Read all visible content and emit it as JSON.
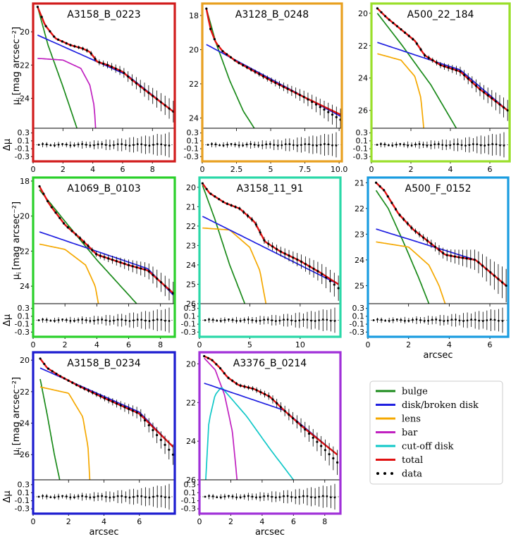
{
  "labels": {
    "mu_label": "μ",
    "mu_sub": "i",
    "mu_units": "[mag arcsec⁻²]",
    "delta_mu": "Δμ",
    "xlabel": "arcsec"
  },
  "legend": [
    {
      "label": "bulge",
      "color": "#1a8a1a",
      "style": "line"
    },
    {
      "label": "disk/broken disk",
      "color": "#1f1fe0",
      "style": "line"
    },
    {
      "label": "lens",
      "color": "#f5a800",
      "style": "line"
    },
    {
      "label": "bar",
      "color": "#c020c0",
      "style": "line"
    },
    {
      "label": "cut-off disk",
      "color": "#10c8c8",
      "style": "line"
    },
    {
      "label": "total",
      "color": "#e01010",
      "style": "line"
    },
    {
      "label": "data",
      "color": "#000000",
      "style": "dots"
    }
  ],
  "chart_data": [
    {
      "type": "line",
      "title": "A3158_B_0223",
      "frame_color": "#d11c1c",
      "xlim": [
        0,
        9.5
      ],
      "ylim": [
        25.8,
        18.3
      ],
      "xticks": [
        0,
        2,
        4,
        6,
        8
      ],
      "yticks": [
        20,
        22,
        24
      ],
      "residual_yticks": [
        "0.3",
        "0.1",
        "-0.1",
        "-0.3"
      ],
      "show_ylabel": true,
      "show_xlabel": false,
      "components": [
        {
          "name": "bulge",
          "x": [
            0.3,
            1.0,
            2.0,
            3.2
          ],
          "y": [
            18.5,
            20.8,
            23.3,
            26.5
          ]
        },
        {
          "name": "disk",
          "x": [
            0.3,
            4.3,
            6.3,
            9.4
          ],
          "y": [
            20.2,
            21.8,
            22.6,
            24.8
          ]
        },
        {
          "name": "bar",
          "x": [
            0.3,
            2.0,
            3.2,
            3.8,
            4.1,
            4.2
          ],
          "y": [
            21.6,
            21.7,
            22.2,
            23.2,
            24.5,
            26.0
          ]
        },
        {
          "name": "total",
          "x": [
            0.3,
            0.8,
            1.5,
            2.5,
            3.3,
            3.8,
            4.3,
            5.0,
            6.0,
            6.5,
            7.5,
            9.4
          ],
          "y": [
            18.5,
            19.6,
            20.4,
            20.8,
            21.0,
            21.2,
            21.8,
            22.0,
            22.4,
            22.8,
            23.5,
            24.8
          ]
        },
        {
          "name": "data",
          "x": [
            0.3,
            0.8,
            1.5,
            2.5,
            3.3,
            3.8,
            4.3,
            5.0,
            6.0,
            6.5,
            7.5,
            9.4
          ],
          "y": [
            18.5,
            19.6,
            20.4,
            20.8,
            21.0,
            21.2,
            21.8,
            22.0,
            22.4,
            22.8,
            23.5,
            24.8
          ]
        }
      ]
    },
    {
      "type": "line",
      "title": "A3128_B_0248",
      "frame_color": "#e8a020",
      "xlim": [
        0,
        10.2
      ],
      "ylim": [
        24.6,
        17.3
      ],
      "xticks": [
        0,
        2.5,
        5.0,
        7.5,
        10.0
      ],
      "yticks": [
        18,
        20,
        22,
        24
      ],
      "residual_yticks": [
        "0.3",
        "0.1",
        "-0.1",
        "-0.3"
      ],
      "show_ylabel": false,
      "show_xlabel": false,
      "components": [
        {
          "name": "bulge",
          "x": [
            0.3,
            1.0,
            2.0,
            3.0,
            3.8
          ],
          "y": [
            17.6,
            19.6,
            21.8,
            23.6,
            24.6
          ]
        },
        {
          "name": "disk",
          "x": [
            0.3,
            10.1
          ],
          "y": [
            19.7,
            23.9
          ]
        },
        {
          "name": "total",
          "x": [
            0.3,
            0.6,
            1.0,
            1.5,
            2.5,
            5.0,
            7.5,
            10.1
          ],
          "y": [
            17.6,
            18.8,
            19.6,
            20.1,
            20.7,
            21.8,
            22.8,
            23.8
          ]
        },
        {
          "name": "data",
          "x": [
            0.3,
            0.6,
            1.0,
            1.5,
            2.5,
            5.0,
            7.5,
            10.1
          ],
          "y": [
            17.6,
            18.8,
            19.6,
            20.1,
            20.7,
            21.8,
            22.8,
            24.1
          ]
        }
      ]
    },
    {
      "type": "line",
      "title": "A500_22_184",
      "frame_color": "#9adf2a",
      "xlim": [
        0,
        7.0
      ],
      "ylim": [
        27.1,
        19.4
      ],
      "xticks": [
        0,
        2,
        4,
        6
      ],
      "yticks": [
        20,
        22,
        24,
        26
      ],
      "residual_yticks": [
        "0.3",
        "0.1",
        "-0.1",
        "-0.3"
      ],
      "show_ylabel": false,
      "show_xlabel": false,
      "components": [
        {
          "name": "bulge",
          "x": [
            0.3,
            1.5,
            3.0,
            4.3
          ],
          "y": [
            20.0,
            21.9,
            24.4,
            27.1
          ]
        },
        {
          "name": "lens",
          "x": [
            0.3,
            1.5,
            2.2,
            2.5,
            2.65
          ],
          "y": [
            22.5,
            22.9,
            23.9,
            25.2,
            27.1
          ]
        },
        {
          "name": "disk",
          "x": [
            0.3,
            4.5,
            6.9
          ],
          "y": [
            21.8,
            23.5,
            26.0
          ]
        },
        {
          "name": "total",
          "x": [
            0.3,
            0.8,
            1.5,
            2.2,
            2.7,
            3.5,
            4.5,
            5.5,
            6.9
          ],
          "y": [
            19.7,
            20.3,
            21.0,
            21.7,
            22.6,
            23.2,
            23.6,
            24.7,
            26.0
          ]
        },
        {
          "name": "data",
          "x": [
            0.3,
            0.8,
            1.5,
            2.2,
            2.7,
            3.5,
            4.5,
            5.5,
            6.9
          ],
          "y": [
            19.7,
            20.3,
            21.0,
            21.7,
            22.6,
            23.2,
            23.6,
            24.7,
            26.0
          ]
        }
      ]
    },
    {
      "type": "line",
      "title": "A1069_B_0103",
      "frame_color": "#2ad02a",
      "xlim": [
        0,
        8.9
      ],
      "ylim": [
        25.0,
        17.8
      ],
      "xticks": [
        0,
        2,
        4,
        6,
        8
      ],
      "yticks": [
        18,
        20,
        22,
        24
      ],
      "residual_yticks": [
        "0.3",
        "0.1",
        "-0.1",
        "-0.3"
      ],
      "show_ylabel": true,
      "show_xlabel": false,
      "components": [
        {
          "name": "bulge",
          "x": [
            0.4,
            2.0,
            4.0,
            6.5
          ],
          "y": [
            18.5,
            20.3,
            22.5,
            25.0
          ]
        },
        {
          "name": "lens",
          "x": [
            0.4,
            2.0,
            3.3,
            3.9,
            4.1
          ],
          "y": [
            21.6,
            21.9,
            22.8,
            24.0,
            25.0
          ]
        },
        {
          "name": "disk",
          "x": [
            0.4,
            7.2,
            8.8
          ],
          "y": [
            20.9,
            23.0,
            24.5
          ]
        },
        {
          "name": "total",
          "x": [
            0.4,
            1.0,
            2.0,
            3.0,
            4.0,
            5.0,
            6.0,
            7.2,
            8.8
          ],
          "y": [
            18.3,
            19.3,
            20.5,
            21.3,
            22.2,
            22.5,
            22.8,
            23.1,
            24.4
          ]
        },
        {
          "name": "data",
          "x": [
            0.4,
            1.0,
            2.0,
            3.0,
            4.0,
            5.0,
            6.0,
            7.2,
            8.8
          ],
          "y": [
            18.3,
            19.3,
            20.5,
            21.3,
            22.2,
            22.5,
            22.8,
            23.1,
            24.4
          ]
        }
      ]
    },
    {
      "type": "line",
      "title": "A3158_11_91",
      "frame_color": "#2ad8a8",
      "xlim": [
        0,
        14.0
      ],
      "ylim": [
        26.0,
        19.5
      ],
      "xticks": [
        0,
        5,
        10
      ],
      "yticks": [
        20,
        21,
        22,
        23,
        24,
        25,
        26
      ],
      "residual_yticks": [
        "0.3",
        "0.1",
        "-0.1",
        "-0.3"
      ],
      "show_ylabel": false,
      "show_xlabel": false,
      "components": [
        {
          "name": "bulge",
          "x": [
            0.3,
            1.5,
            3.0,
            4.5
          ],
          "y": [
            19.9,
            21.6,
            24.0,
            26.0
          ]
        },
        {
          "name": "lens",
          "x": [
            0.3,
            3.0,
            5.0,
            6.0,
            6.6
          ],
          "y": [
            22.1,
            22.2,
            23.1,
            24.3,
            26.0
          ]
        },
        {
          "name": "disk",
          "x": [
            0.3,
            13.8
          ],
          "y": [
            21.5,
            25.0
          ]
        },
        {
          "name": "total",
          "x": [
            0.3,
            1.0,
            2.5,
            4.0,
            5.5,
            6.5,
            8.0,
            10.0,
            12.0,
            13.8
          ],
          "y": [
            19.8,
            20.3,
            20.8,
            21.1,
            21.8,
            22.8,
            23.3,
            23.8,
            24.4,
            25.0
          ]
        },
        {
          "name": "data",
          "x": [
            0.3,
            1.0,
            2.5,
            4.0,
            5.5,
            6.5,
            8.0,
            10.0,
            12.0,
            13.8
          ],
          "y": [
            19.8,
            20.3,
            20.8,
            21.1,
            21.8,
            22.8,
            23.3,
            23.8,
            24.4,
            25.2
          ]
        }
      ]
    },
    {
      "type": "line",
      "title": "A500_F_0152",
      "frame_color": "#1a9ce0",
      "xlim": [
        0,
        6.9
      ],
      "ylim": [
        25.7,
        20.8
      ],
      "xticks": [
        0,
        2,
        4,
        6
      ],
      "yticks": [
        21,
        22,
        23,
        24,
        25
      ],
      "residual_yticks": [
        "0.3",
        "0.1",
        "-0.1",
        "-0.3"
      ],
      "show_ylabel": false,
      "show_xlabel": true,
      "components": [
        {
          "name": "bulge",
          "x": [
            0.4,
            1.0,
            1.8,
            2.5,
            3.0
          ],
          "y": [
            21.3,
            22.0,
            23.4,
            24.7,
            25.7
          ]
        },
        {
          "name": "lens",
          "x": [
            0.4,
            2.0,
            3.0,
            3.5,
            3.8
          ],
          "y": [
            23.3,
            23.5,
            24.2,
            25.0,
            25.7
          ]
        },
        {
          "name": "disk",
          "x": [
            0.4,
            5.3,
            6.8
          ],
          "y": [
            22.8,
            24.0,
            25.0
          ]
        },
        {
          "name": "total",
          "x": [
            0.4,
            0.8,
            1.5,
            2.2,
            3.0,
            3.8,
            4.5,
            5.3,
            6.8
          ],
          "y": [
            21.0,
            21.3,
            22.2,
            22.8,
            23.3,
            23.8,
            23.9,
            24.0,
            25.0
          ]
        },
        {
          "name": "data",
          "x": [
            0.4,
            0.8,
            1.5,
            2.2,
            3.0,
            3.8,
            4.5,
            5.3,
            6.8
          ],
          "y": [
            21.0,
            21.3,
            22.2,
            22.8,
            23.3,
            23.8,
            23.9,
            24.0,
            25.0
          ]
        }
      ]
    },
    {
      "type": "line",
      "title": "A3158_B_0234",
      "frame_color": "#1c1cd0",
      "xlim": [
        0,
        8.0
      ],
      "ylim": [
        27.6,
        19.5
      ],
      "xticks": [
        0,
        2,
        4,
        6
      ],
      "yticks": [
        20,
        22,
        24,
        26
      ],
      "residual_yticks": [
        "0.3",
        "0.1",
        "-0.1",
        "-0.3"
      ],
      "show_ylabel": true,
      "show_xlabel": true,
      "components": [
        {
          "name": "bulge",
          "x": [
            0.4,
            0.8,
            1.2,
            1.5
          ],
          "y": [
            21.2,
            23.5,
            26.0,
            27.6
          ]
        },
        {
          "name": "lens",
          "x": [
            0.4,
            2.0,
            2.8,
            3.1,
            3.2
          ],
          "y": [
            21.7,
            22.1,
            23.6,
            25.5,
            27.6
          ]
        },
        {
          "name": "disk",
          "x": [
            0.4,
            6.0,
            7.9
          ],
          "y": [
            20.5,
            23.3,
            25.5
          ]
        },
        {
          "name": "total",
          "x": [
            0.4,
            0.8,
            1.5,
            2.5,
            4.0,
            5.0,
            6.0,
            7.9
          ],
          "y": [
            19.9,
            20.5,
            21.0,
            21.6,
            22.4,
            22.9,
            23.4,
            25.5
          ]
        },
        {
          "name": "data",
          "x": [
            0.4,
            0.8,
            1.5,
            2.5,
            4.0,
            5.0,
            6.0,
            7.9
          ],
          "y": [
            19.9,
            20.5,
            21.0,
            21.6,
            22.4,
            22.9,
            23.4,
            26.0
          ]
        }
      ]
    },
    {
      "type": "line",
      "title": "A3376_B_0214",
      "frame_color": "#a030d8",
      "xlim": [
        0,
        9.0
      ],
      "ylim": [
        26.0,
        19.4
      ],
      "xticks": [
        0,
        2,
        4,
        6,
        8
      ],
      "yticks": [
        20,
        22,
        24,
        26
      ],
      "residual_yticks": [
        "0.3",
        "0.1",
        "-0.1",
        "-0.3"
      ],
      "show_ylabel": false,
      "show_xlabel": true,
      "components": [
        {
          "name": "bar",
          "x": [
            0.3,
            1.0,
            1.6,
            2.1,
            2.4
          ],
          "y": [
            19.7,
            20.3,
            21.6,
            23.5,
            26.0
          ]
        },
        {
          "name": "cut-off disk",
          "x": [
            0.4,
            0.6,
            1.0,
            1.4,
            3.0,
            4.5,
            6.0
          ],
          "y": [
            26.0,
            23.0,
            21.6,
            21.2,
            22.7,
            24.4,
            26.0
          ]
        },
        {
          "name": "disk",
          "x": [
            0.3,
            5.4,
            8.8
          ],
          "y": [
            21.0,
            22.4,
            24.7
          ]
        },
        {
          "name": "total",
          "x": [
            0.3,
            0.8,
            1.3,
            1.8,
            2.5,
            3.5,
            4.5,
            5.4,
            6.5,
            8.8
          ],
          "y": [
            19.6,
            19.8,
            20.2,
            20.7,
            21.1,
            21.3,
            21.7,
            22.4,
            23.2,
            24.7
          ]
        },
        {
          "name": "data",
          "x": [
            0.3,
            0.8,
            1.3,
            1.8,
            2.5,
            3.5,
            4.5,
            5.4,
            6.5,
            8.8
          ],
          "y": [
            19.6,
            19.8,
            20.2,
            20.7,
            21.1,
            21.3,
            21.7,
            22.4,
            23.2,
            25.1
          ]
        }
      ]
    }
  ]
}
